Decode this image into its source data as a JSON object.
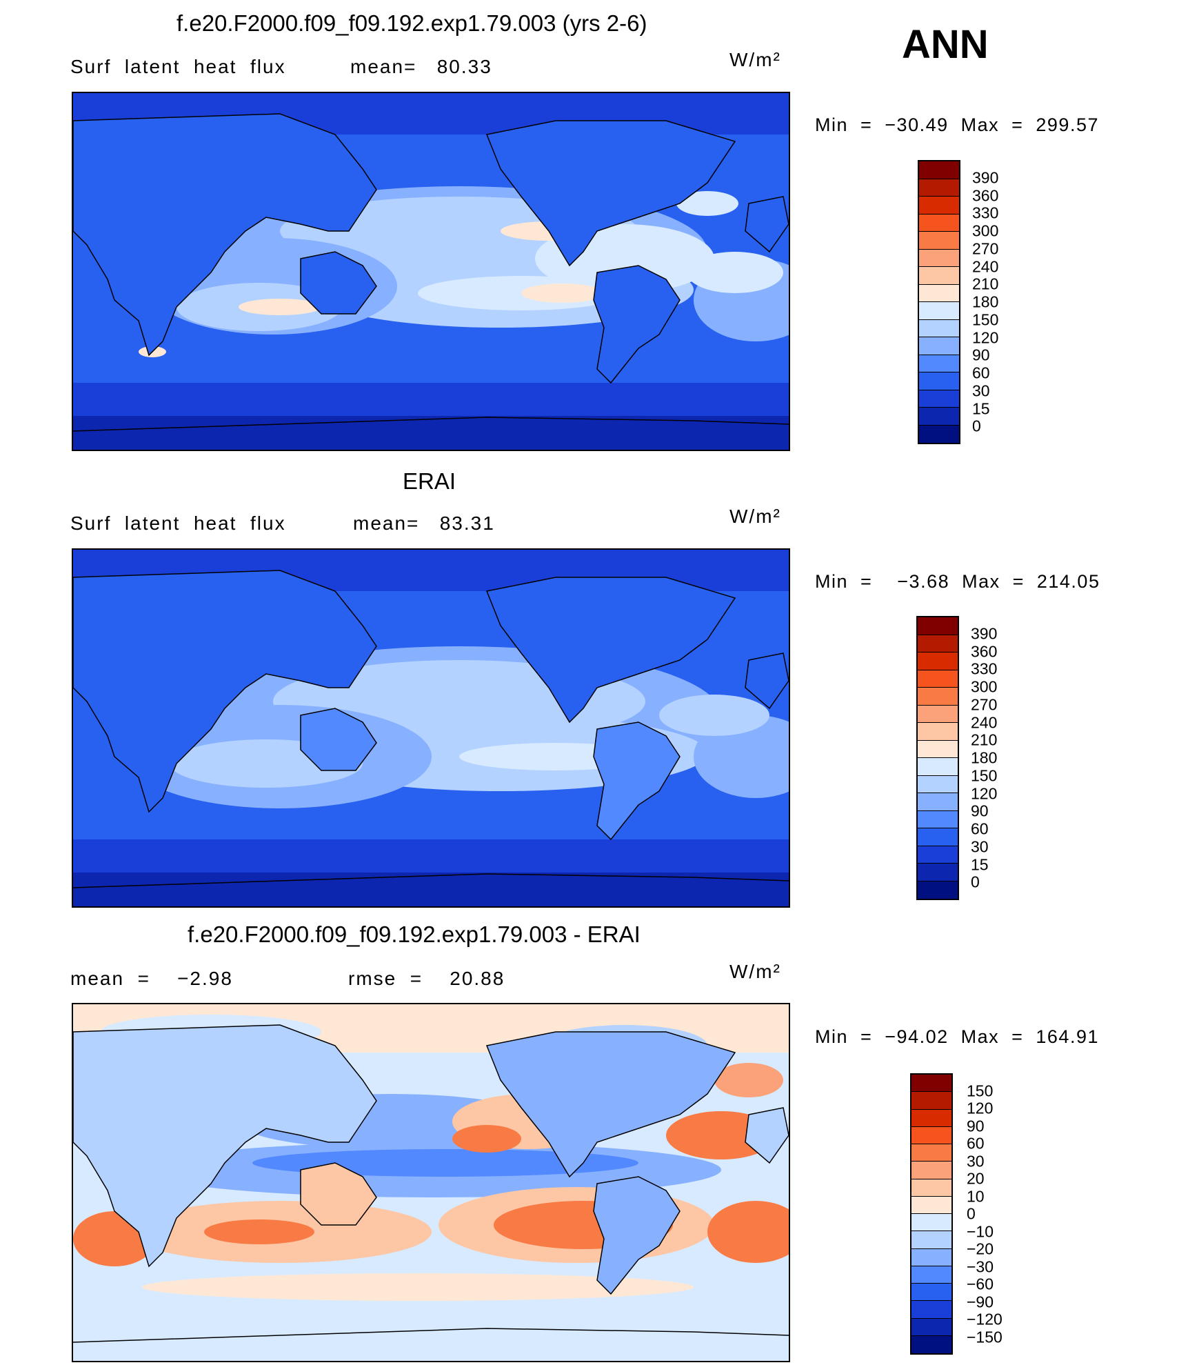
{
  "season": "ANN",
  "panels": [
    {
      "title": "f.e20.F2000.f09_f09.192.exp1.79.003 (yrs 2-6)",
      "left_label": "Surf  latent  heat  flux",
      "mid_label": "mean=   80.33",
      "units": "W/m²",
      "minmax": "Min  =  −30.49  Max  =  299.57",
      "colorbar": {
        "labels": [
          "390",
          "360",
          "330",
          "300",
          "270",
          "240",
          "210",
          "180",
          "150",
          "120",
          "90",
          "60",
          "30",
          "15",
          "0"
        ],
        "colors": [
          "#800000",
          "#b41a00",
          "#d92b00",
          "#f5541e",
          "#f87b45",
          "#fba27a",
          "#fdc7a6",
          "#fee8d5",
          "#d7eaff",
          "#b4d2ff",
          "#87b1ff",
          "#5389ff",
          "#2860f0",
          "#1a3fd9",
          "#0d26b0",
          "#001080"
        ]
      }
    },
    {
      "title": "ERAI",
      "left_label": "Surf  latent  heat  flux",
      "mid_label": "mean=   83.31",
      "units": "W/m²",
      "minmax": "Min  =    −3.68  Max  =  214.05",
      "colorbar": {
        "labels": [
          "390",
          "360",
          "330",
          "300",
          "270",
          "240",
          "210",
          "180",
          "150",
          "120",
          "90",
          "60",
          "30",
          "15",
          "0"
        ],
        "colors": [
          "#800000",
          "#b41a00",
          "#d92b00",
          "#f5541e",
          "#f87b45",
          "#fba27a",
          "#fdc7a6",
          "#fee8d5",
          "#d7eaff",
          "#b4d2ff",
          "#87b1ff",
          "#5389ff",
          "#2860f0",
          "#1a3fd9",
          "#0d26b0",
          "#001080"
        ]
      }
    },
    {
      "title": "f.e20.F2000.f09_f09.192.exp1.79.003 - ERAI",
      "left_label": "mean  =    −2.98",
      "mid_label": "rmse  =    20.88",
      "units": "W/m²",
      "minmax": "Min  =  −94.02  Max  =  164.91",
      "colorbar": {
        "labels": [
          "150",
          "120",
          "90",
          "60",
          "30",
          "20",
          "10",
          "0",
          "−10",
          "−20",
          "−30",
          "−60",
          "−90",
          "−120",
          "−150"
        ],
        "colors": [
          "#800000",
          "#b41a00",
          "#d92b00",
          "#f5541e",
          "#f87b45",
          "#fba27a",
          "#fdc7a6",
          "#fee8d5",
          "#d7eaff",
          "#b4d2ff",
          "#87b1ff",
          "#5389ff",
          "#2860f0",
          "#1a3fd9",
          "#0d26b0",
          "#001080"
        ]
      }
    }
  ]
}
